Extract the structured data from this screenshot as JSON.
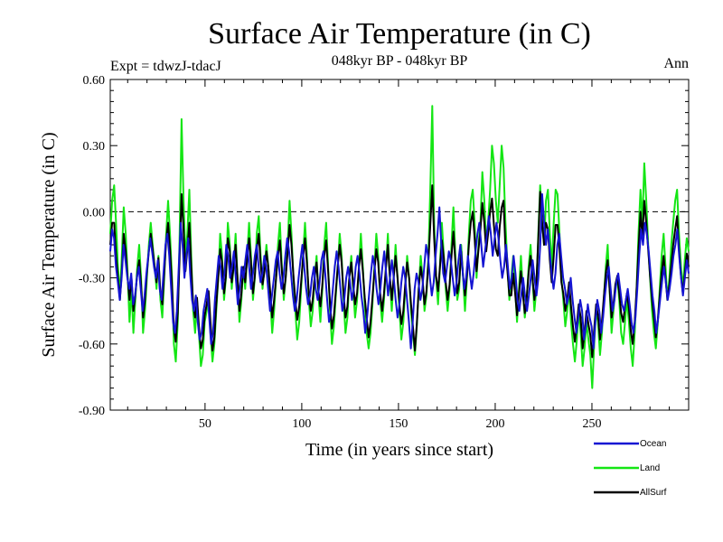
{
  "chart_data": {
    "type": "line",
    "title": "Surface Air Temperature (in C)",
    "subtitle": "048kyr BP - 048kyr BP",
    "experiment_label": "Expt = tdwzJ-tdacJ",
    "period_label": "Ann",
    "xlabel": "Time (in years since start)",
    "ylabel": "Surface Air Temperature (in C)",
    "xlim": [
      1,
      300
    ],
    "ylim": [
      -0.9,
      0.6
    ],
    "x_ticks": [
      50,
      100,
      150,
      200,
      250
    ],
    "x_tick_labels": [
      "50",
      "100",
      "150",
      "200",
      "250"
    ],
    "y_ticks": [
      0.6,
      0.3,
      0.0,
      -0.3,
      -0.6,
      -0.9
    ],
    "y_tick_labels": [
      "0.60",
      "0.30",
      "0.00",
      "-0.30",
      "-0.60",
      "-0.90"
    ],
    "reference_line": 0.0,
    "legend_position": "bottom-right",
    "series": [
      {
        "name": "Ocean",
        "color": "#1414d2",
        "values": [
          -0.18,
          -0.08,
          -0.12,
          -0.25,
          -0.32,
          -0.4,
          -0.3,
          -0.15,
          -0.22,
          -0.3,
          -0.35,
          -0.28,
          -0.42,
          -0.38,
          -0.3,
          -0.25,
          -0.35,
          -0.45,
          -0.38,
          -0.28,
          -0.2,
          -0.12,
          -0.18,
          -0.25,
          -0.3,
          -0.22,
          -0.35,
          -0.4,
          -0.28,
          -0.15,
          -0.1,
          -0.2,
          -0.35,
          -0.5,
          -0.55,
          -0.45,
          -0.25,
          -0.05,
          -0.15,
          -0.3,
          -0.2,
          -0.12,
          -0.28,
          -0.4,
          -0.45,
          -0.38,
          -0.5,
          -0.58,
          -0.55,
          -0.45,
          -0.4,
          -0.35,
          -0.48,
          -0.6,
          -0.55,
          -0.4,
          -0.3,
          -0.2,
          -0.25,
          -0.35,
          -0.28,
          -0.15,
          -0.2,
          -0.3,
          -0.25,
          -0.18,
          -0.3,
          -0.42,
          -0.35,
          -0.25,
          -0.3,
          -0.22,
          -0.15,
          -0.25,
          -0.35,
          -0.28,
          -0.2,
          -0.15,
          -0.25,
          -0.32,
          -0.28,
          -0.2,
          -0.25,
          -0.35,
          -0.45,
          -0.38,
          -0.3,
          -0.22,
          -0.18,
          -0.28,
          -0.35,
          -0.3,
          -0.2,
          -0.12,
          -0.18,
          -0.28,
          -0.38,
          -0.45,
          -0.4,
          -0.3,
          -0.22,
          -0.15,
          -0.25,
          -0.35,
          -0.42,
          -0.38,
          -0.3,
          -0.25,
          -0.35,
          -0.4,
          -0.32,
          -0.22,
          -0.18,
          -0.28,
          -0.4,
          -0.5,
          -0.45,
          -0.35,
          -0.25,
          -0.18,
          -0.25,
          -0.35,
          -0.45,
          -0.4,
          -0.3,
          -0.25,
          -0.32,
          -0.4,
          -0.35,
          -0.25,
          -0.2,
          -0.28,
          -0.38,
          -0.45,
          -0.55,
          -0.48,
          -0.38,
          -0.28,
          -0.2,
          -0.25,
          -0.35,
          -0.42,
          -0.35,
          -0.25,
          -0.18,
          -0.28,
          -0.38,
          -0.3,
          -0.22,
          -0.3,
          -0.4,
          -0.48,
          -0.42,
          -0.32,
          -0.25,
          -0.3,
          -0.4,
          -0.5,
          -0.62,
          -0.5,
          -0.35,
          -0.28,
          -0.32,
          -0.4,
          -0.35,
          -0.25,
          -0.15,
          -0.2,
          -0.3,
          -0.38,
          -0.32,
          -0.2,
          -0.1,
          0.02,
          -0.15,
          -0.28,
          -0.32,
          -0.25,
          -0.18,
          -0.22,
          -0.3,
          -0.38,
          -0.32,
          -0.22,
          -0.15,
          -0.25,
          -0.35,
          -0.3,
          -0.2,
          -0.28,
          -0.35,
          -0.28,
          -0.18,
          -0.1,
          -0.05,
          -0.15,
          -0.25,
          -0.18,
          -0.1,
          -0.02,
          -0.1,
          -0.2,
          -0.12,
          -0.05,
          -0.12,
          -0.22,
          -0.3,
          -0.25,
          -0.15,
          -0.25,
          -0.35,
          -0.3,
          -0.2,
          -0.28,
          -0.4,
          -0.45,
          -0.38,
          -0.3,
          -0.38,
          -0.45,
          -0.38,
          -0.3,
          -0.22,
          -0.3,
          -0.38,
          -0.3,
          -0.15,
          0.08,
          -0.05,
          -0.15,
          -0.08,
          -0.18,
          -0.28,
          -0.35,
          -0.28,
          -0.15,
          -0.1,
          -0.2,
          -0.3,
          -0.35,
          -0.42,
          -0.38,
          -0.3,
          -0.4,
          -0.48,
          -0.55,
          -0.48,
          -0.4,
          -0.45,
          -0.58,
          -0.52,
          -0.42,
          -0.48,
          -0.52,
          -0.62,
          -0.5,
          -0.4,
          -0.45,
          -0.55,
          -0.48,
          -0.38,
          -0.3,
          -0.25,
          -0.35,
          -0.45,
          -0.4,
          -0.32,
          -0.28,
          -0.35,
          -0.42,
          -0.45,
          -0.4,
          -0.35,
          -0.42,
          -0.5,
          -0.55,
          -0.48,
          -0.35,
          -0.2,
          -0.08,
          -0.15,
          -0.05,
          -0.1,
          -0.18,
          -0.28,
          -0.38,
          -0.45,
          -0.55,
          -0.48,
          -0.4,
          -0.32,
          -0.25,
          -0.32,
          -0.4,
          -0.35,
          -0.28,
          -0.2,
          -0.15,
          -0.08,
          -0.2,
          -0.3,
          -0.38,
          -0.3,
          -0.22,
          -0.28
        ]
      },
      {
        "name": "Land",
        "color": "#14e614",
        "values": [
          -0.1,
          0.05,
          0.12,
          -0.05,
          -0.25,
          -0.38,
          -0.2,
          0.02,
          -0.1,
          -0.28,
          -0.5,
          -0.35,
          -0.55,
          -0.4,
          -0.25,
          -0.15,
          -0.3,
          -0.55,
          -0.45,
          -0.3,
          -0.15,
          -0.05,
          -0.15,
          -0.25,
          -0.35,
          -0.2,
          -0.4,
          -0.48,
          -0.3,
          -0.1,
          0.05,
          -0.1,
          -0.3,
          -0.6,
          -0.68,
          -0.5,
          -0.1,
          0.42,
          0.05,
          -0.2,
          -0.1,
          0.1,
          -0.2,
          -0.45,
          -0.55,
          -0.4,
          -0.55,
          -0.7,
          -0.65,
          -0.5,
          -0.45,
          -0.38,
          -0.55,
          -0.68,
          -0.6,
          -0.45,
          -0.3,
          -0.1,
          -0.2,
          -0.4,
          -0.3,
          -0.05,
          -0.15,
          -0.35,
          -0.25,
          -0.1,
          -0.3,
          -0.5,
          -0.4,
          -0.25,
          -0.35,
          -0.2,
          -0.05,
          -0.2,
          -0.4,
          -0.3,
          -0.1,
          -0.02,
          -0.2,
          -0.35,
          -0.25,
          -0.15,
          -0.25,
          -0.4,
          -0.55,
          -0.45,
          -0.3,
          -0.15,
          -0.05,
          -0.25,
          -0.4,
          -0.3,
          -0.15,
          0.05,
          -0.1,
          -0.3,
          -0.45,
          -0.58,
          -0.5,
          -0.35,
          -0.2,
          -0.05,
          -0.2,
          -0.4,
          -0.52,
          -0.45,
          -0.3,
          -0.2,
          -0.38,
          -0.5,
          -0.35,
          -0.15,
          -0.05,
          -0.25,
          -0.45,
          -0.6,
          -0.52,
          -0.38,
          -0.25,
          -0.1,
          -0.2,
          -0.4,
          -0.55,
          -0.48,
          -0.3,
          -0.2,
          -0.35,
          -0.48,
          -0.4,
          -0.25,
          -0.1,
          -0.25,
          -0.42,
          -0.55,
          -0.62,
          -0.55,
          -0.42,
          -0.25,
          -0.1,
          -0.2,
          -0.4,
          -0.5,
          -0.4,
          -0.25,
          -0.1,
          -0.3,
          -0.45,
          -0.3,
          -0.15,
          -0.3,
          -0.45,
          -0.58,
          -0.5,
          -0.35,
          -0.2,
          -0.3,
          -0.45,
          -0.55,
          -0.65,
          -0.52,
          -0.35,
          -0.2,
          -0.3,
          -0.45,
          -0.38,
          -0.2,
          0.1,
          0.48,
          -0.05,
          -0.3,
          -0.42,
          -0.25,
          -0.05,
          -0.2,
          -0.35,
          -0.45,
          -0.35,
          -0.15,
          0.02,
          -0.2,
          -0.4,
          -0.35,
          -0.15,
          -0.3,
          -0.45,
          -0.3,
          -0.1,
          0.05,
          0.1,
          -0.05,
          -0.3,
          -0.15,
          -0.05,
          0.18,
          0.05,
          -0.15,
          -0.05,
          0.1,
          0.3,
          0.22,
          0.05,
          -0.05,
          0.12,
          0.3,
          0.2,
          -0.05,
          -0.25,
          -0.4,
          -0.3,
          -0.2,
          -0.35,
          -0.5,
          -0.35,
          -0.2,
          -0.35,
          -0.48,
          -0.4,
          -0.25,
          -0.15,
          -0.3,
          -0.45,
          -0.35,
          -0.1,
          0.12,
          -0.05,
          -0.15,
          0.05,
          0.1,
          -0.1,
          -0.25,
          -0.05,
          0.1,
          0.08,
          -0.1,
          -0.3,
          -0.4,
          -0.52,
          -0.45,
          -0.35,
          -0.5,
          -0.6,
          -0.68,
          -0.58,
          -0.45,
          -0.55,
          -0.7,
          -0.62,
          -0.5,
          -0.58,
          -0.65,
          -0.8,
          -0.6,
          -0.45,
          -0.5,
          -0.65,
          -0.55,
          -0.4,
          -0.25,
          -0.15,
          -0.35,
          -0.55,
          -0.45,
          -0.35,
          -0.3,
          -0.4,
          -0.55,
          -0.6,
          -0.5,
          -0.4,
          -0.5,
          -0.62,
          -0.7,
          -0.55,
          -0.35,
          -0.1,
          0.1,
          -0.05,
          0.22,
          0.05,
          -0.15,
          -0.3,
          -0.45,
          -0.55,
          -0.62,
          -0.5,
          -0.35,
          -0.2,
          -0.1,
          -0.25,
          -0.4,
          -0.3,
          -0.15,
          -0.05,
          0.05,
          0.1,
          -0.1,
          -0.25,
          -0.35,
          -0.22,
          -0.12,
          -0.18
        ]
      },
      {
        "name": "AllSurf",
        "color": "#000000",
        "values": [
          -0.15,
          -0.05,
          -0.05,
          -0.2,
          -0.3,
          -0.4,
          -0.27,
          -0.1,
          -0.18,
          -0.3,
          -0.4,
          -0.3,
          -0.45,
          -0.38,
          -0.28,
          -0.22,
          -0.33,
          -0.48,
          -0.4,
          -0.28,
          -0.18,
          -0.1,
          -0.17,
          -0.25,
          -0.32,
          -0.21,
          -0.37,
          -0.42,
          -0.28,
          -0.13,
          -0.05,
          -0.17,
          -0.33,
          -0.53,
          -0.59,
          -0.46,
          -0.2,
          0.08,
          -0.08,
          -0.27,
          -0.17,
          -0.05,
          -0.25,
          -0.42,
          -0.48,
          -0.39,
          -0.52,
          -0.62,
          -0.58,
          -0.47,
          -0.42,
          -0.36,
          -0.5,
          -0.63,
          -0.57,
          -0.42,
          -0.3,
          -0.17,
          -0.23,
          -0.37,
          -0.29,
          -0.12,
          -0.18,
          -0.32,
          -0.25,
          -0.15,
          -0.3,
          -0.45,
          -0.37,
          -0.25,
          -0.32,
          -0.21,
          -0.12,
          -0.23,
          -0.37,
          -0.29,
          -0.17,
          -0.1,
          -0.23,
          -0.33,
          -0.27,
          -0.18,
          -0.25,
          -0.37,
          -0.48,
          -0.4,
          -0.3,
          -0.2,
          -0.13,
          -0.27,
          -0.37,
          -0.3,
          -0.18,
          -0.06,
          -0.15,
          -0.29,
          -0.4,
          -0.49,
          -0.43,
          -0.32,
          -0.21,
          -0.12,
          -0.23,
          -0.37,
          -0.45,
          -0.4,
          -0.3,
          -0.23,
          -0.36,
          -0.43,
          -0.33,
          -0.2,
          -0.13,
          -0.27,
          -0.42,
          -0.53,
          -0.47,
          -0.36,
          -0.25,
          -0.15,
          -0.23,
          -0.37,
          -0.48,
          -0.43,
          -0.3,
          -0.23,
          -0.33,
          -0.42,
          -0.37,
          -0.25,
          -0.17,
          -0.27,
          -0.39,
          -0.48,
          -0.57,
          -0.5,
          -0.39,
          -0.27,
          -0.17,
          -0.23,
          -0.37,
          -0.45,
          -0.37,
          -0.25,
          -0.15,
          -0.29,
          -0.4,
          -0.3,
          -0.2,
          -0.3,
          -0.42,
          -0.51,
          -0.45,
          -0.33,
          -0.23,
          -0.3,
          -0.42,
          -0.52,
          -0.63,
          -0.51,
          -0.35,
          -0.25,
          -0.31,
          -0.42,
          -0.36,
          -0.23,
          -0.06,
          0.12,
          -0.12,
          -0.29,
          -0.36,
          -0.25,
          -0.13,
          -0.21,
          -0.32,
          -0.4,
          -0.33,
          -0.2,
          -0.09,
          -0.23,
          -0.37,
          -0.32,
          -0.18,
          -0.29,
          -0.38,
          -0.29,
          -0.15,
          -0.05,
          0.0,
          -0.12,
          -0.27,
          -0.17,
          -0.08,
          0.04,
          -0.05,
          -0.18,
          -0.1,
          0.0,
          0.06,
          -0.06,
          -0.17,
          -0.2,
          -0.07,
          0.02,
          0.05,
          -0.17,
          -0.27,
          -0.38,
          -0.38,
          -0.28,
          -0.37,
          -0.47,
          -0.37,
          -0.27,
          -0.37,
          -0.46,
          -0.39,
          -0.28,
          -0.2,
          -0.3,
          -0.4,
          -0.32,
          -0.13,
          0.09,
          -0.05,
          -0.15,
          -0.05,
          -0.08,
          -0.22,
          -0.32,
          -0.2,
          -0.06,
          -0.06,
          -0.17,
          -0.32,
          -0.37,
          -0.45,
          -0.4,
          -0.32,
          -0.43,
          -0.52,
          -0.59,
          -0.51,
          -0.42,
          -0.48,
          -0.62,
          -0.55,
          -0.45,
          -0.51,
          -0.56,
          -0.66,
          -0.53,
          -0.42,
          -0.47,
          -0.58,
          -0.5,
          -0.39,
          -0.28,
          -0.22,
          -0.35,
          -0.48,
          -0.42,
          -0.33,
          -0.29,
          -0.37,
          -0.46,
          -0.5,
          -0.43,
          -0.37,
          -0.44,
          -0.54,
          -0.6,
          -0.5,
          -0.35,
          -0.17,
          0.0,
          -0.12,
          0.05,
          -0.05,
          -0.17,
          -0.29,
          -0.4,
          -0.48,
          -0.57,
          -0.49,
          -0.38,
          -0.28,
          -0.2,
          -0.3,
          -0.4,
          -0.33,
          -0.24,
          -0.15,
          -0.08,
          -0.02,
          -0.17,
          -0.29,
          -0.37,
          -0.28,
          -0.19,
          -0.25
        ]
      }
    ]
  }
}
